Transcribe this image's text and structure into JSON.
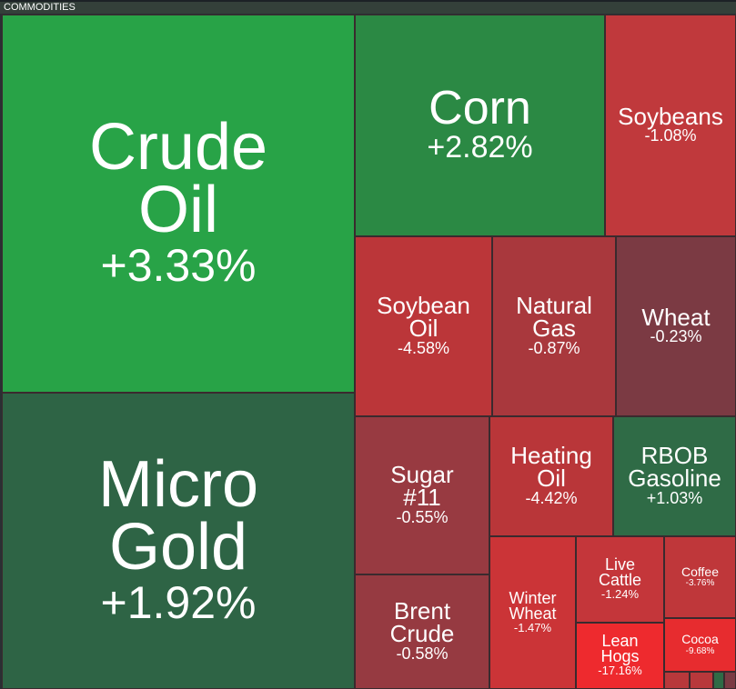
{
  "header": {
    "title": "COMMODITIES"
  },
  "tiles": [
    {
      "name": "Crude Oil",
      "change": "+3.33%",
      "color": "#28a347"
    },
    {
      "name": "Micro Gold",
      "change": "+1.92%",
      "color": "#2e6445"
    },
    {
      "name": "Corn",
      "change": "+2.82%",
      "color": "#2b8944"
    },
    {
      "name": "Soybeans",
      "change": "-1.08%",
      "color": "#c0393c"
    },
    {
      "name": "Soybean Oil",
      "change": "-4.58%",
      "color": "#bb3639"
    },
    {
      "name": "Natural Gas",
      "change": "-0.87%",
      "color": "#a9383d"
    },
    {
      "name": "Wheat",
      "change": "-0.23%",
      "color": "#7b3a43"
    },
    {
      "name": "Sugar #11",
      "change": "-0.55%",
      "color": "#983a41"
    },
    {
      "name": "Heating Oil",
      "change": "-4.42%",
      "color": "#b93639"
    },
    {
      "name": "RBOB Gasoline",
      "change": "+1.03%",
      "color": "#2f6b46"
    },
    {
      "name": "Brent Crude",
      "change": "-0.58%",
      "color": "#963a41"
    },
    {
      "name": "Winter Wheat",
      "change": "-1.47%",
      "color": "#cb3437"
    },
    {
      "name": "Live Cattle",
      "change": "-1.24%",
      "color": "#c4363a"
    },
    {
      "name": "Lean Hogs",
      "change": "-17.16%",
      "color": "#ee2a2e"
    },
    {
      "name": "Coffee",
      "change": "-3.76%",
      "color": "#bf373a"
    },
    {
      "name": "Cocoa",
      "change": "-9.68%",
      "color": "#e72c2f"
    }
  ]
}
